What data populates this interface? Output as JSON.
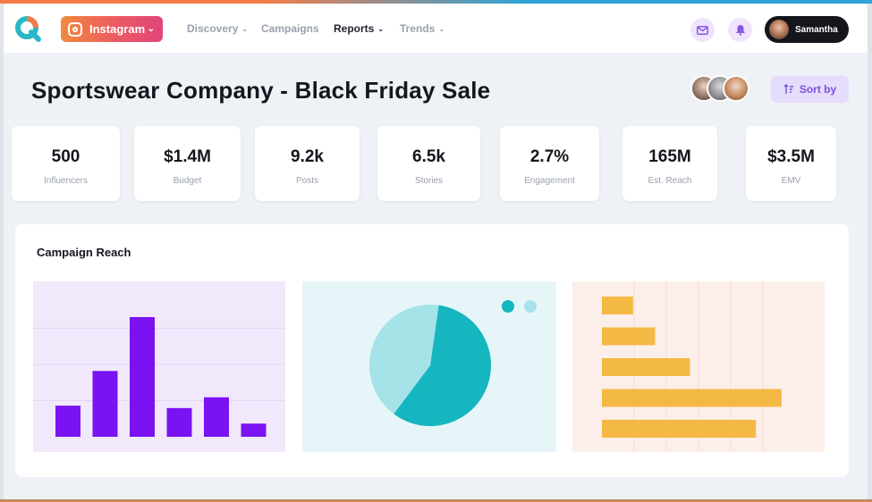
{
  "nav": {
    "platform": "Instagram",
    "menu": [
      {
        "label": "Discovery",
        "has_caret": true,
        "active": false
      },
      {
        "label": "Campaigns",
        "has_caret": false,
        "active": false
      },
      {
        "label": "Reports",
        "has_caret": true,
        "active": true
      },
      {
        "label": "Trends",
        "has_caret": true,
        "active": false
      }
    ],
    "user_name": "Samantha",
    "icons": [
      "mail-icon",
      "bell-icon"
    ]
  },
  "title": "Sportswear Company - Black Friday Sale",
  "sort_label": "Sort by",
  "stats": [
    {
      "value": "500",
      "label": "Influencers"
    },
    {
      "value": "$1.4M",
      "label": "Budget"
    },
    {
      "value": "9.2k",
      "label": "Posts"
    },
    {
      "value": "6.5k",
      "label": "Stories"
    },
    {
      "value": "2.7%",
      "label": "Engagement"
    },
    {
      "value": "165M",
      "label": "Est. Reach"
    },
    {
      "value": "$3.5M",
      "label": "EMV"
    }
  ],
  "panel": {
    "title": "Campaign Reach"
  },
  "colors": {
    "bar": "#7a12f2",
    "pie_main": "#16b6c0",
    "pie_secondary": "#a6e3e8",
    "hbar": "#f4b944",
    "accent": "#7b4fe0"
  },
  "chart_data": [
    {
      "type": "bar",
      "values": [
        26,
        55,
        100,
        24,
        33,
        11
      ],
      "ylim": [
        0,
        100
      ],
      "grid": true
    },
    {
      "type": "pie",
      "values": [
        58,
        42
      ],
      "legend": "top-right"
    },
    {
      "type": "bar",
      "orientation": "horizontal",
      "values": [
        17,
        29,
        48,
        98,
        84
      ],
      "xlim": [
        0,
        100
      ],
      "grid": true
    }
  ]
}
